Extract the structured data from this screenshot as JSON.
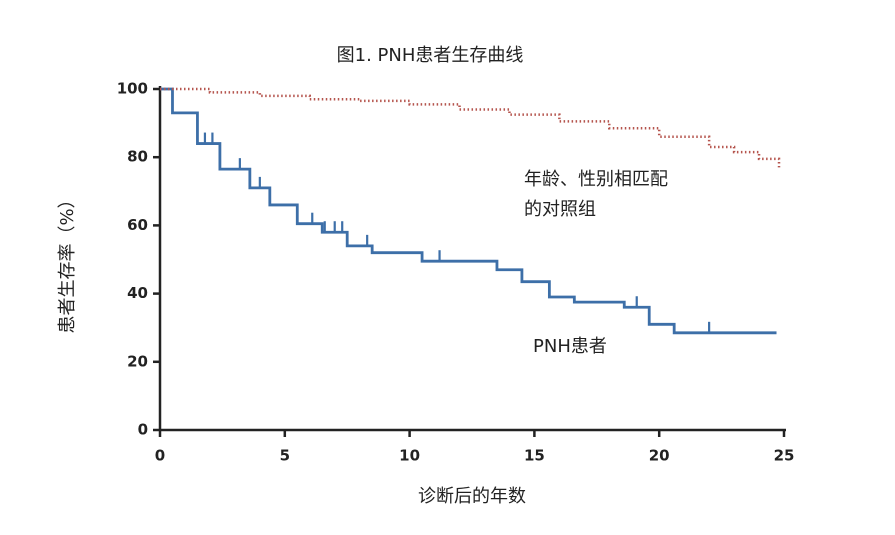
{
  "chart_data": {
    "type": "step",
    "title": "图1. PNH患者生存曲线",
    "x_label": "诊断后的年数",
    "y_label": "患者生存率（%）",
    "xlim": [
      0,
      25
    ],
    "xticks": [
      0,
      5,
      10,
      15,
      20,
      25
    ],
    "ylim": [
      0,
      100
    ],
    "yticks": [
      0,
      20,
      40,
      60,
      80,
      100
    ],
    "series": [
      {
        "color": "#3d6fa8",
        "style": "solid",
        "x": [
          0,
          0.5,
          1.5,
          2.4,
          3.6,
          4.4,
          5.5,
          6.5,
          7.5,
          8.5,
          10.5,
          13.5,
          14.5,
          15.6,
          16.6,
          18.6,
          19.6,
          20.6,
          24.7
        ],
        "values": [
          100,
          93,
          84,
          76.5,
          71,
          66,
          60.5,
          58,
          54,
          52,
          49.5,
          47,
          43.5,
          39,
          37.5,
          36,
          31,
          28.5,
          28.5
        ],
        "censor_x": [
          1.8,
          2.1,
          3.2,
          4.0,
          6.1,
          6.6,
          7.0,
          7.3,
          8.3,
          11.2,
          19.1,
          22.0
        ],
        "censor_values": [
          84,
          84,
          76.5,
          71,
          60.5,
          58,
          58,
          58,
          54,
          49.5,
          36,
          28.5
        ],
        "label": "PNH患者"
      },
      {
        "color": "#b5554e",
        "style": "dotted",
        "x": [
          0,
          2,
          4,
          6,
          8,
          10,
          12,
          14,
          16,
          18,
          20,
          22,
          23,
          24,
          24.8
        ],
        "values": [
          100,
          99,
          98,
          97,
          96.5,
          95.5,
          94,
          92.5,
          90.5,
          88.5,
          86,
          83,
          81.5,
          79.5,
          77
        ],
        "label_lines": [
          "年龄、性别相匹配",
          "的对照组"
        ]
      }
    ]
  }
}
